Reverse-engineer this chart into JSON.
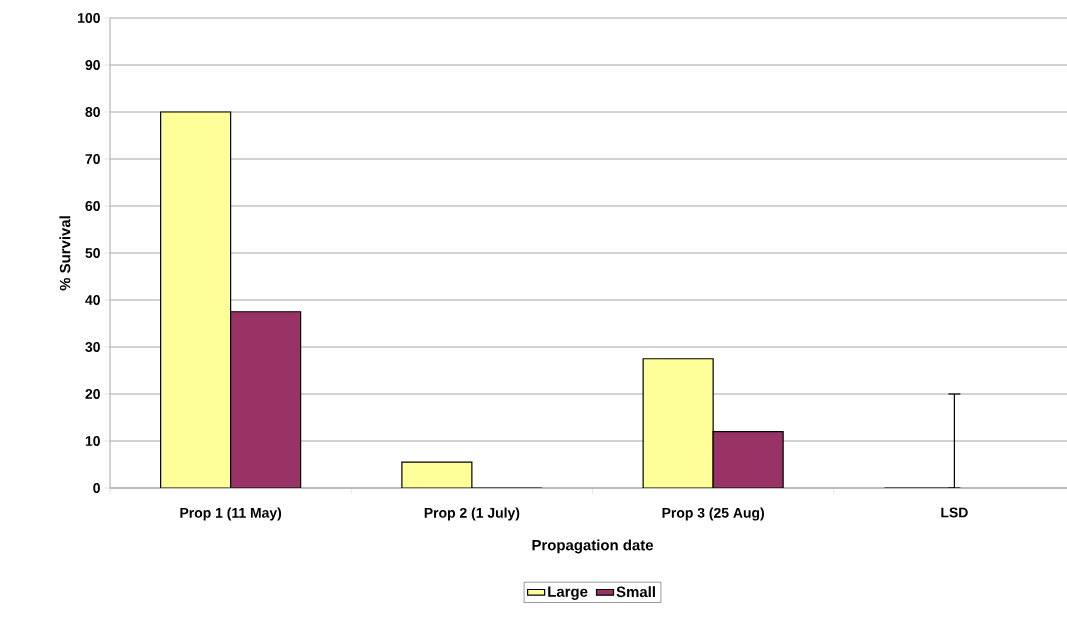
{
  "chart_data": {
    "type": "bar",
    "xlabel": "Propagation date",
    "ylabel": "% Survival",
    "categories": [
      "Prop 1 (11 May)",
      "Prop 2 (1 July)",
      "Prop 3 (25 Aug)",
      "LSD"
    ],
    "series": [
      {
        "name": "Large",
        "color": "#ffff99",
        "values": [
          80,
          5.5,
          27.5,
          0
        ],
        "errors": [
          null,
          null,
          null,
          [
            0,
            20
          ]
        ]
      },
      {
        "name": "Small",
        "color": "#993366",
        "values": [
          37.5,
          0,
          12,
          null
        ]
      }
    ],
    "ylim": [
      0,
      100
    ],
    "yticks": [
      0,
      10,
      20,
      30,
      40,
      50,
      60,
      70,
      80,
      90,
      100
    ],
    "grid": "y",
    "legend": "bottom"
  }
}
